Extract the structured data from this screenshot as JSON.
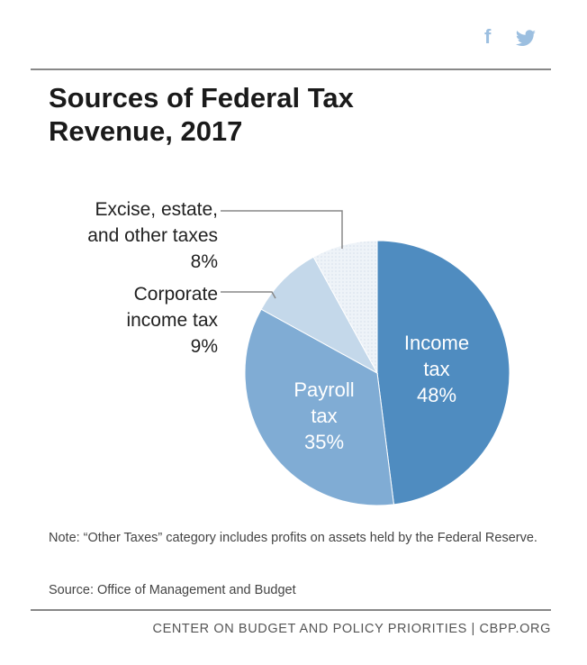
{
  "social": {
    "icons": [
      "facebook-icon",
      "twitter-icon"
    ],
    "color": "#9cbfe0"
  },
  "chart_data": {
    "type": "pie",
    "title": "Sources of Federal Tax Revenue, 2017",
    "slices": [
      {
        "label": "Income tax",
        "value": 48,
        "display": "48%",
        "color": "#4f8cc0",
        "label_lines": [
          "Income",
          "tax"
        ]
      },
      {
        "label": "Payroll tax",
        "value": 35,
        "display": "35%",
        "color": "#80acd4",
        "label_lines": [
          "Payroll",
          "tax"
        ]
      },
      {
        "label": "Corporate income tax",
        "value": 9,
        "display": "9%",
        "color": "#c4d8ea",
        "label_lines": [
          "Corporate",
          "income tax"
        ]
      },
      {
        "label": "Excise, estate, and other taxes",
        "value": 8,
        "display": "8%",
        "color": "#eef3f8",
        "label_lines": [
          "Excise, estate,",
          "and other taxes"
        ]
      }
    ],
    "start": "12 o'clock",
    "direction": "clockwise"
  },
  "title_lines": [
    "Sources of Federal Tax",
    "Revenue, 2017"
  ],
  "note": "Note: “Other Taxes” category includes profits on assets held by the Federal Reserve.",
  "source": "Source: Office of Management and Budget",
  "footer": "CENTER ON BUDGET AND POLICY PRIORITIES | CBPP.ORG"
}
